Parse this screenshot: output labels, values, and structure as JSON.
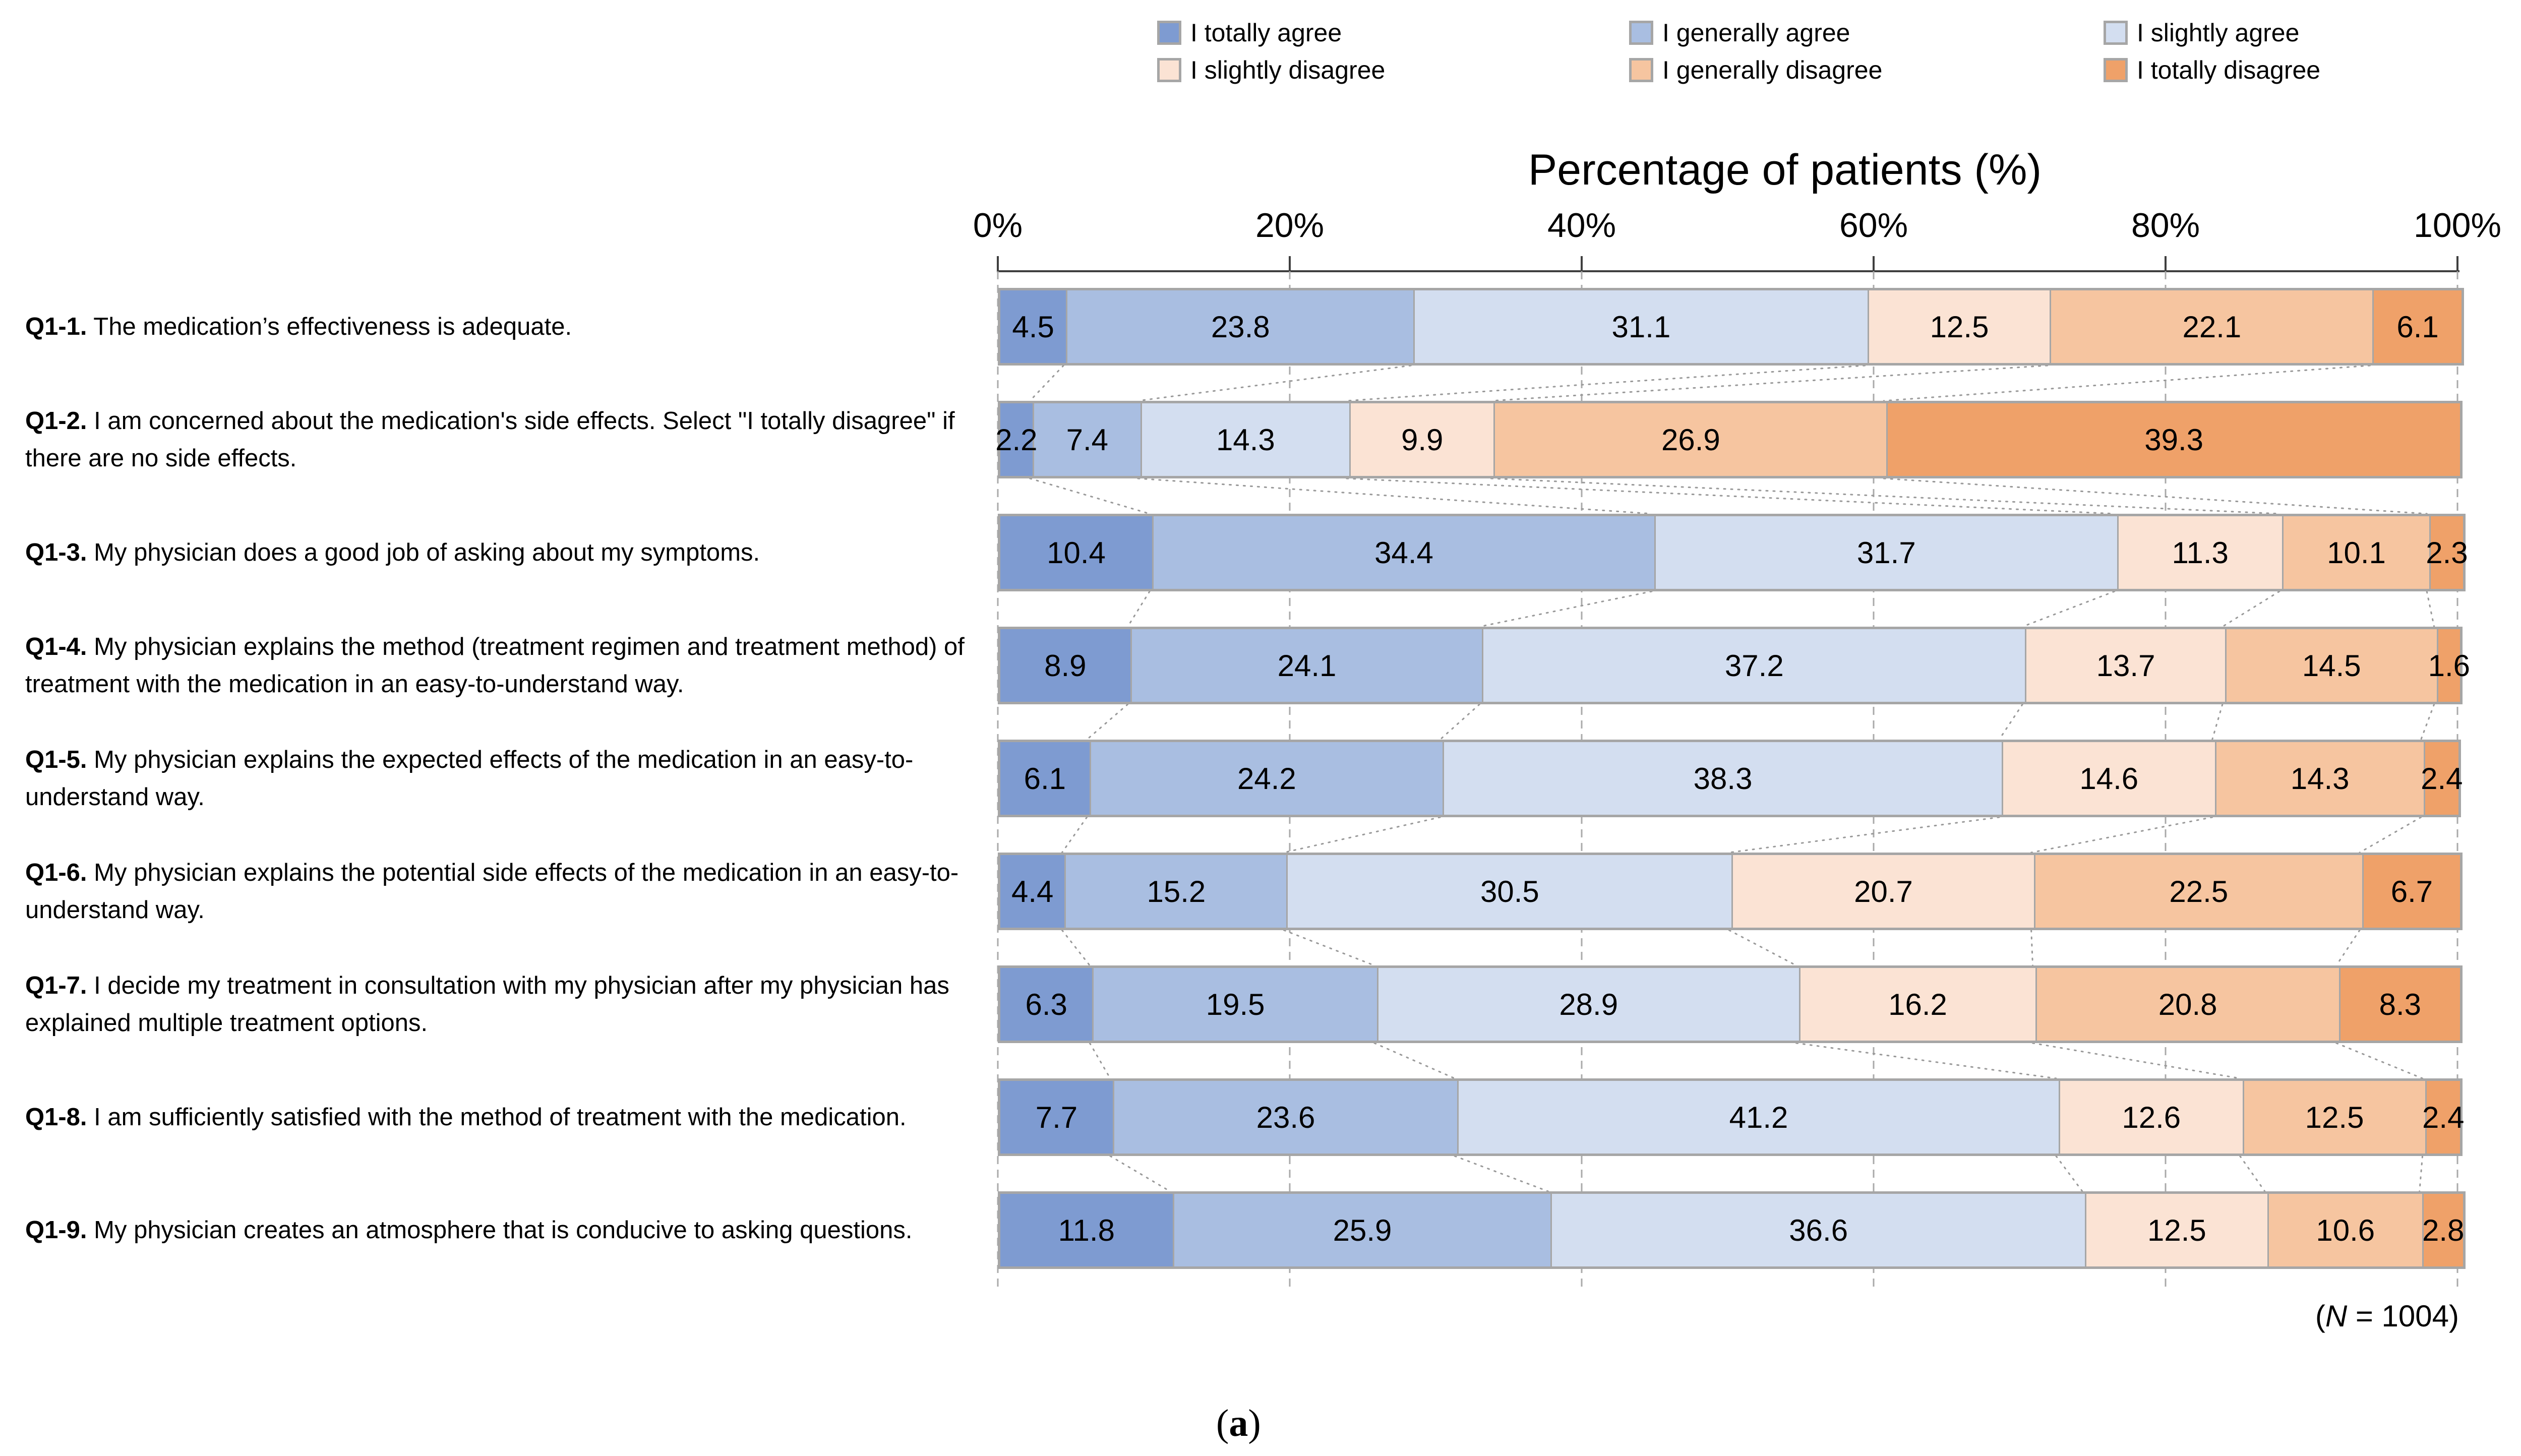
{
  "chart_data": {
    "type": "bar",
    "stacked": true,
    "orientation": "horizontal",
    "title": "Percentage of patients (%)",
    "x_axis": {
      "ticks": [
        "0%",
        "20%",
        "40%",
        "60%",
        "80%",
        "100%"
      ],
      "range": [
        0,
        100
      ],
      "grid": "dashed-vertical"
    },
    "legend_position": "top",
    "series": [
      {
        "name": "I totally agree",
        "color": "#7E9BD1"
      },
      {
        "name": "I generally agree",
        "color": "#A9BEE1"
      },
      {
        "name": "I slightly agree",
        "color": "#D3DEF0"
      },
      {
        "name": "I slightly disagree",
        "color": "#FBE3D4"
      },
      {
        "name": "I generally disagree",
        "color": "#F6C5A0"
      },
      {
        "name": "I totally disagree",
        "color": "#EFA169"
      }
    ],
    "categories": [
      {
        "prefix": "Q1-1.",
        "text": "The medication’s effectiveness is adequate."
      },
      {
        "prefix": "Q1-2.",
        "text": "I am concerned about the medication's side effects. Select \"I totally disagree\" if there are no side effects."
      },
      {
        "prefix": "Q1-3.",
        "text": "My physician does a good job of asking about my symptoms."
      },
      {
        "prefix": "Q1-4.",
        "text": "My physician explains the method (treatment regimen and treatment method) of treatment with the medication in an easy-to-understand way."
      },
      {
        "prefix": "Q1-5.",
        "text": "My physician explains the expected effects of the medication in an easy-to-understand way."
      },
      {
        "prefix": "Q1-6.",
        "text": "My physician explains the potential side effects of the medication in an easy-to-understand way."
      },
      {
        "prefix": "Q1-7.",
        "text": "I decide my treatment in consultation with my physician after my physician has explained multiple treatment options."
      },
      {
        "prefix": "Q1-8.",
        "text": "I am sufficiently satisfied with the method of treatment with the medication."
      },
      {
        "prefix": "Q1-9.",
        "text": "My physician creates an atmosphere that is conducive to asking questions."
      }
    ],
    "values": [
      [
        4.5,
        23.8,
        31.1,
        12.5,
        22.1,
        6.1
      ],
      [
        2.2,
        7.4,
        14.3,
        9.9,
        26.9,
        39.3
      ],
      [
        10.4,
        34.4,
        31.7,
        11.3,
        10.1,
        2.3
      ],
      [
        8.9,
        24.1,
        37.2,
        13.7,
        14.5,
        1.6
      ],
      [
        6.1,
        24.2,
        38.3,
        14.6,
        14.3,
        2.4
      ],
      [
        4.4,
        15.2,
        30.5,
        20.7,
        22.5,
        6.7
      ],
      [
        6.3,
        19.5,
        28.9,
        16.2,
        20.8,
        8.3
      ],
      [
        7.7,
        23.6,
        41.2,
        12.6,
        12.5,
        2.4
      ],
      [
        11.8,
        25.9,
        36.6,
        12.5,
        10.6,
        2.8
      ]
    ],
    "note": {
      "open": "(",
      "n": "N",
      "rest": " = 1004)"
    },
    "caption": {
      "open": "(",
      "letter": "a",
      "close": ")"
    }
  }
}
